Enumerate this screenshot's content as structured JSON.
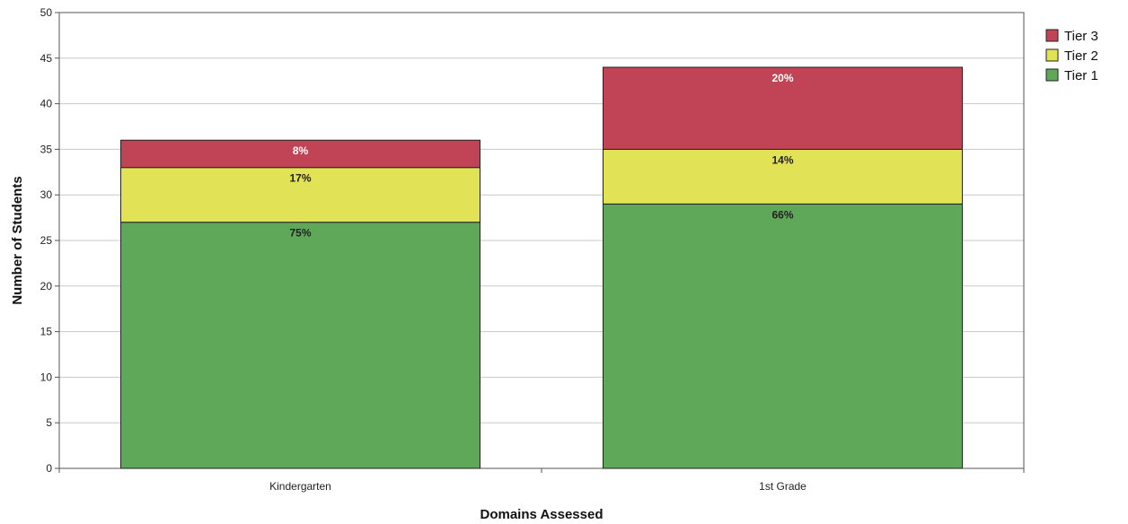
{
  "chart_data": {
    "type": "bar",
    "stacked": true,
    "title": "",
    "xlabel": "Domains Assessed",
    "ylabel": "Number of Students",
    "ylim": [
      0,
      50
    ],
    "yticks": [
      0,
      5,
      10,
      15,
      20,
      25,
      30,
      35,
      40,
      45,
      50
    ],
    "grid": true,
    "legend_position": "right",
    "categories": [
      "Kindergarten",
      "1st Grade"
    ],
    "series": [
      {
        "name": "Tier 1",
        "color": "#5fa85a",
        "label_color": "#222222",
        "values": [
          27,
          29
        ],
        "labels": [
          "75%",
          "66%"
        ]
      },
      {
        "name": "Tier 2",
        "color": "#e2e256",
        "label_color": "#222222",
        "values": [
          6,
          6
        ],
        "labels": [
          "17%",
          "14%"
        ]
      },
      {
        "name": "Tier 3",
        "color": "#c04455",
        "label_color": "#ffffff",
        "values": [
          3,
          9
        ],
        "labels": [
          "8%",
          "20%"
        ]
      }
    ],
    "legend_order": [
      "Tier 3",
      "Tier 2",
      "Tier 1"
    ]
  }
}
